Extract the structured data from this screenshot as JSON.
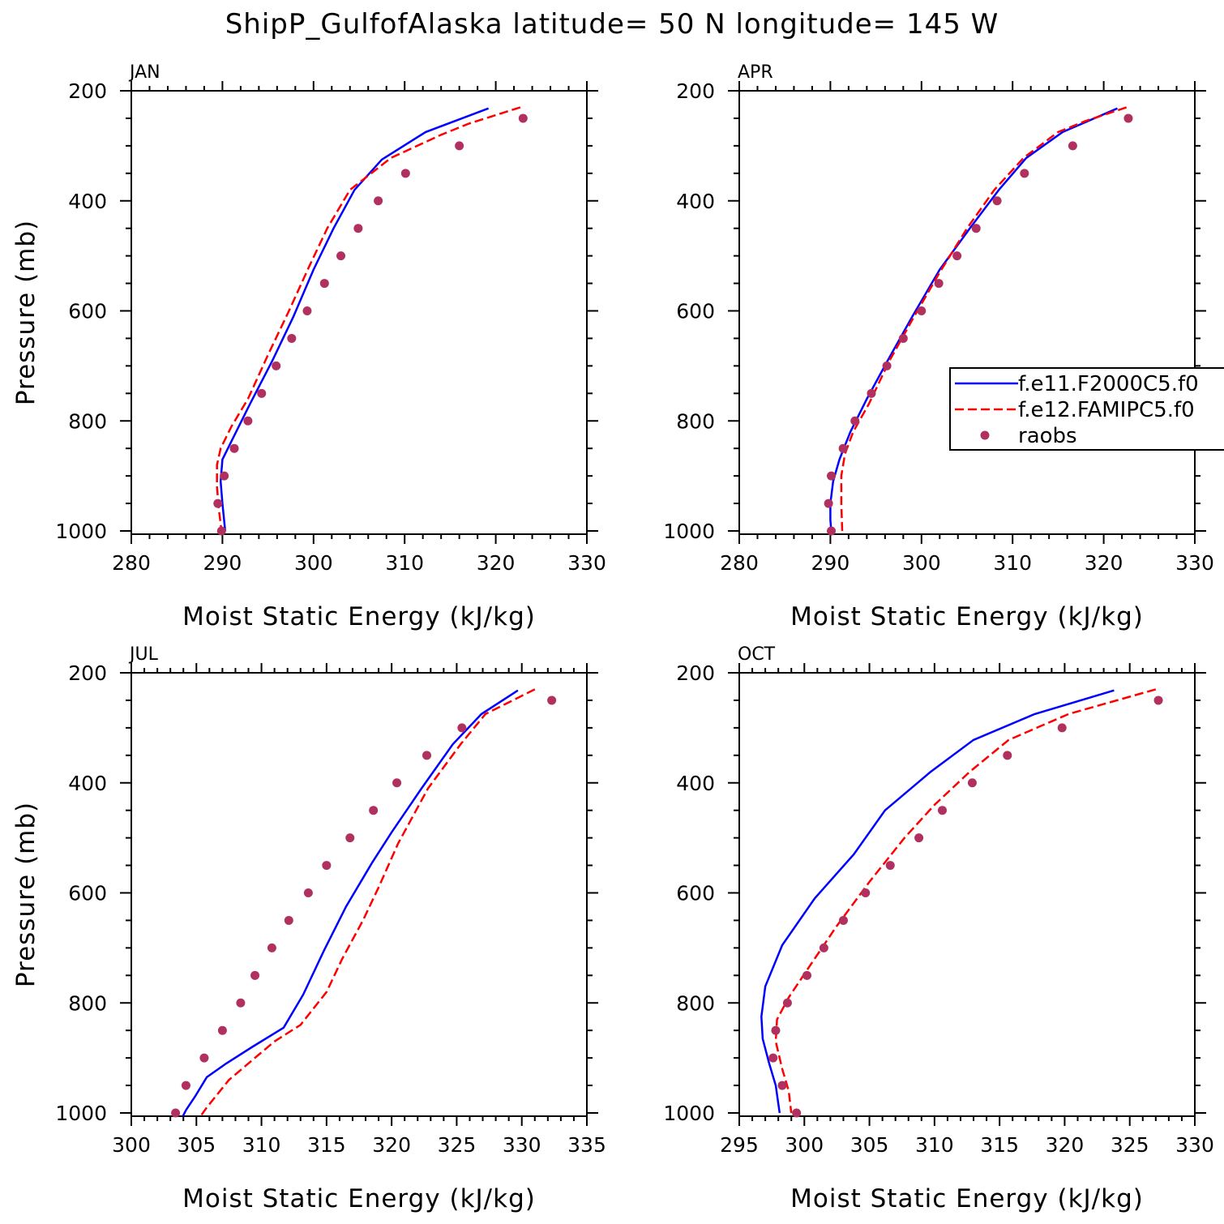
{
  "title": "ShipP_GulfofAlaska  latitude= 50 N longitude= 145 W",
  "colors": {
    "model1": "#0000ff",
    "model2": "#ff0000",
    "obs": "#b03060",
    "axis": "#000000"
  },
  "legend": {
    "placement": "right-middle of APR panel (clipped at page edge)",
    "entries": [
      {
        "label": "f.e11.F2000C5.f0",
        "style": "solid",
        "color": "#0000ff"
      },
      {
        "label": "f.e12.FAMIPC5.f0",
        "style": "dashed",
        "color": "#ff0000"
      },
      {
        "label": "raobs",
        "style": "marker",
        "color": "#b03060"
      }
    ]
  },
  "chart_data": [
    {
      "type": "line",
      "panel": "JAN",
      "xlabel": "Moist Static Energy (kJ/kg)",
      "ylabel": "Pressure (mb)",
      "xlim": [
        280,
        330
      ],
      "ylim": [
        1000,
        200
      ],
      "x_ticks": [
        280,
        290,
        300,
        310,
        320,
        330
      ],
      "y_ticks": [
        200,
        400,
        600,
        800,
        1000
      ],
      "y_reversed": true,
      "series": [
        {
          "name": "f.e11.F2000C5.f0",
          "style": "solid",
          "x": [
            319.2,
            312.3,
            307.5,
            304.5,
            302.2,
            300.0,
            297.8,
            295.5,
            293.0,
            291.2,
            290.0,
            289.8,
            290.0,
            290.3
          ],
          "y": [
            232,
            275,
            325,
            380,
            450,
            525,
            610,
            690,
            770,
            830,
            870,
            910,
            950,
            1000
          ]
        },
        {
          "name": "f.e12.FAMIPC5.f0",
          "style": "dashed",
          "x": [
            322.7,
            317.0,
            314.0,
            308.5,
            304.0,
            301.5,
            299.5,
            297.3,
            295.0,
            292.8,
            291.0,
            289.8,
            289.4,
            289.4,
            289.6,
            289.9
          ],
          "y": [
            230,
            260,
            280,
            322,
            380,
            450,
            520,
            600,
            680,
            760,
            810,
            850,
            880,
            920,
            960,
            1000
          ]
        },
        {
          "name": "raobs",
          "style": "marker",
          "x": [
            323.0,
            316.0,
            310.1,
            307.1,
            304.9,
            303.0,
            301.2,
            299.3,
            297.6,
            295.9,
            294.3,
            292.8,
            291.3,
            290.2,
            289.5,
            289.9
          ],
          "y": [
            250,
            300,
            350,
            400,
            450,
            500,
            550,
            600,
            650,
            700,
            750,
            800,
            850,
            900,
            950,
            1000
          ]
        }
      ]
    },
    {
      "type": "line",
      "panel": "APR",
      "xlabel": "Moist Static Energy (kJ/kg)",
      "ylabel": "",
      "xlim": [
        280,
        330
      ],
      "ylim": [
        1000,
        200
      ],
      "x_ticks": [
        280,
        290,
        300,
        310,
        320,
        330
      ],
      "y_ticks": [
        200,
        400,
        600,
        800,
        1000
      ],
      "y_reversed": true,
      "series": [
        {
          "name": "f.e11.F2000C5.f0",
          "style": "solid",
          "x": [
            321.5,
            315.5,
            311.5,
            308.5,
            305.3,
            302.0,
            299.0,
            296.3,
            294.0,
            292.2,
            291.0,
            290.3,
            290.0,
            290.0,
            290.1
          ],
          "y": [
            232,
            275,
            322,
            380,
            450,
            525,
            610,
            690,
            760,
            820,
            870,
            910,
            950,
            980,
            1000
          ]
        },
        {
          "name": "f.e12.FAMIPC5.f0",
          "style": "dashed",
          "x": [
            322.5,
            318.0,
            315.0,
            311.2,
            308.0,
            305.0,
            302.0,
            299.2,
            296.5,
            294.2,
            292.5,
            291.6,
            291.2,
            291.2,
            291.3
          ],
          "y": [
            230,
            255,
            275,
            322,
            380,
            450,
            530,
            610,
            690,
            770,
            820,
            860,
            900,
            950,
            1000
          ]
        },
        {
          "name": "raobs",
          "style": "marker",
          "x": [
            322.7,
            316.6,
            311.3,
            308.3,
            306.0,
            303.9,
            301.9,
            300.0,
            298.0,
            296.2,
            294.5,
            292.7,
            291.4,
            290.1,
            289.8,
            290.1
          ],
          "y": [
            250,
            300,
            350,
            400,
            450,
            500,
            550,
            600,
            650,
            700,
            750,
            800,
            850,
            900,
            950,
            1000
          ]
        }
      ]
    },
    {
      "type": "line",
      "panel": "JUL",
      "xlabel": "Moist Static Energy (kJ/kg)",
      "ylabel": "Pressure (mb)",
      "xlim": [
        300,
        335
      ],
      "ylim": [
        1000,
        200
      ],
      "x_ticks": [
        300,
        305,
        310,
        315,
        320,
        325,
        330,
        335
      ],
      "y_ticks": [
        200,
        400,
        600,
        800,
        1000
      ],
      "y_reversed": true,
      "series": [
        {
          "name": "f.e11.F2000C5.f0",
          "style": "solid",
          "x": [
            329.7,
            326.9,
            324.7,
            322.3,
            320.0,
            318.5,
            316.5,
            314.8,
            313.2,
            311.7,
            309.3,
            307.3,
            305.8,
            304.9,
            304.2,
            303.7
          ],
          "y": [
            232,
            275,
            330,
            410,
            490,
            545,
            625,
            705,
            785,
            845,
            880,
            910,
            935,
            970,
            995,
            1018
          ]
        },
        {
          "name": "f.e12.FAMIPC5.f0",
          "style": "dashed",
          "x": [
            331.0,
            327.2,
            325.3,
            322.8,
            320.5,
            319.0,
            317.8,
            316.2,
            315.0,
            313.0,
            311.0,
            309.5,
            307.5,
            305.8,
            305.2
          ],
          "y": [
            230,
            275,
            330,
            410,
            510,
            590,
            650,
            720,
            780,
            840,
            870,
            900,
            940,
            990,
            1010
          ]
        },
        {
          "name": "raobs",
          "style": "marker",
          "x": [
            332.3,
            325.4,
            322.7,
            320.4,
            318.6,
            316.8,
            315.0,
            313.6,
            312.1,
            310.8,
            309.5,
            308.4,
            307.0,
            305.6,
            304.2,
            303.4
          ],
          "y": [
            250,
            300,
            350,
            400,
            450,
            500,
            550,
            600,
            650,
            700,
            750,
            800,
            850,
            900,
            950,
            1000
          ]
        }
      ]
    },
    {
      "type": "line",
      "panel": "OCT",
      "xlabel": "Moist Static Energy (kJ/kg)",
      "ylabel": "",
      "xlim": [
        295,
        330
      ],
      "ylim": [
        1000,
        200
      ],
      "x_ticks": [
        295,
        300,
        305,
        310,
        315,
        320,
        325,
        330
      ],
      "y_ticks": [
        200,
        400,
        600,
        800,
        1000
      ],
      "y_reversed": true,
      "series": [
        {
          "name": "f.e11.F2000C5.f0",
          "style": "solid",
          "x": [
            323.8,
            317.7,
            313.0,
            309.7,
            306.2,
            303.8,
            300.8,
            298.3,
            297.0,
            296.7,
            296.8,
            297.3,
            297.8,
            298.1
          ],
          "y": [
            232,
            275,
            322,
            380,
            450,
            530,
            610,
            695,
            770,
            825,
            865,
            910,
            950,
            1000
          ]
        },
        {
          "name": "f.e12.FAMIPC5.f0",
          "style": "dashed",
          "x": [
            327.0,
            320.3,
            315.7,
            312.7,
            310.0,
            307.7,
            305.0,
            302.5,
            300.5,
            298.8,
            297.9,
            297.8,
            298.3,
            298.8,
            299.0
          ],
          "y": [
            230,
            275,
            322,
            380,
            440,
            500,
            580,
            660,
            730,
            790,
            830,
            870,
            920,
            960,
            1000
          ]
        },
        {
          "name": "raobs",
          "style": "marker",
          "x": [
            327.2,
            319.8,
            315.6,
            312.9,
            310.6,
            308.8,
            306.6,
            304.7,
            303.0,
            301.5,
            300.2,
            298.7,
            297.8,
            297.6,
            298.3,
            299.4
          ],
          "y": [
            250,
            300,
            350,
            400,
            450,
            500,
            550,
            600,
            650,
            700,
            750,
            800,
            850,
            900,
            950,
            1000
          ]
        }
      ]
    }
  ]
}
